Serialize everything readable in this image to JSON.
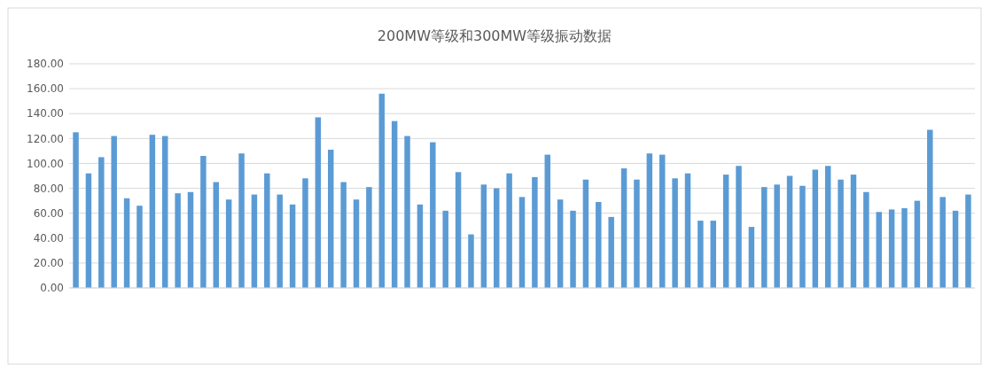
{
  "chart_data": {
    "type": "bar",
    "title": "200MW等级和300MW等级振动数据",
    "categories": [
      null,
      null,
      null,
      null,
      null,
      null,
      null,
      null,
      null,
      null,
      null,
      null,
      null,
      null,
      null,
      null,
      null,
      null,
      null,
      null,
      null,
      null,
      null,
      null,
      null,
      null,
      null,
      null,
      null,
      null,
      null,
      null,
      null,
      null,
      null,
      null,
      null,
      null,
      null,
      null,
      null,
      null,
      null,
      null,
      null,
      null,
      null,
      null,
      null,
      null,
      null,
      null,
      null,
      null,
      null,
      null,
      null,
      null,
      null,
      null,
      null,
      null,
      null,
      null,
      null,
      null,
      null,
      null,
      null,
      null,
      null
    ],
    "values": [
      125,
      92,
      105,
      122,
      72,
      66,
      123,
      122,
      76,
      77,
      106,
      85,
      71,
      108,
      75,
      92,
      75,
      67,
      88,
      137,
      111,
      85,
      71,
      81,
      156,
      134,
      122,
      67,
      117,
      62,
      93,
      43,
      83,
      80,
      92,
      73,
      89,
      107,
      71,
      62,
      87,
      69,
      57,
      96,
      87,
      108,
      107,
      88,
      92,
      54,
      54,
      91,
      98,
      49,
      81,
      83,
      90,
      82,
      95,
      98,
      87,
      91,
      77,
      61,
      63,
      64,
      70,
      127,
      73,
      62,
      75
    ],
    "color": "#5b9bd5",
    "ylim": [
      0,
      180
    ],
    "yticks": [
      {
        "value": 0,
        "label": "0.00"
      },
      {
        "value": 20,
        "label": "20.00"
      },
      {
        "value": 40,
        "label": "40.00"
      },
      {
        "value": 60,
        "label": "60.00"
      },
      {
        "value": 80,
        "label": "80.00"
      },
      {
        "value": 100,
        "label": "100.00"
      },
      {
        "value": 120,
        "label": "120.00"
      },
      {
        "value": 140,
        "label": "140.00"
      },
      {
        "value": 160,
        "label": "160.00"
      },
      {
        "value": 180,
        "label": "180.00"
      }
    ],
    "grid": "y"
  }
}
